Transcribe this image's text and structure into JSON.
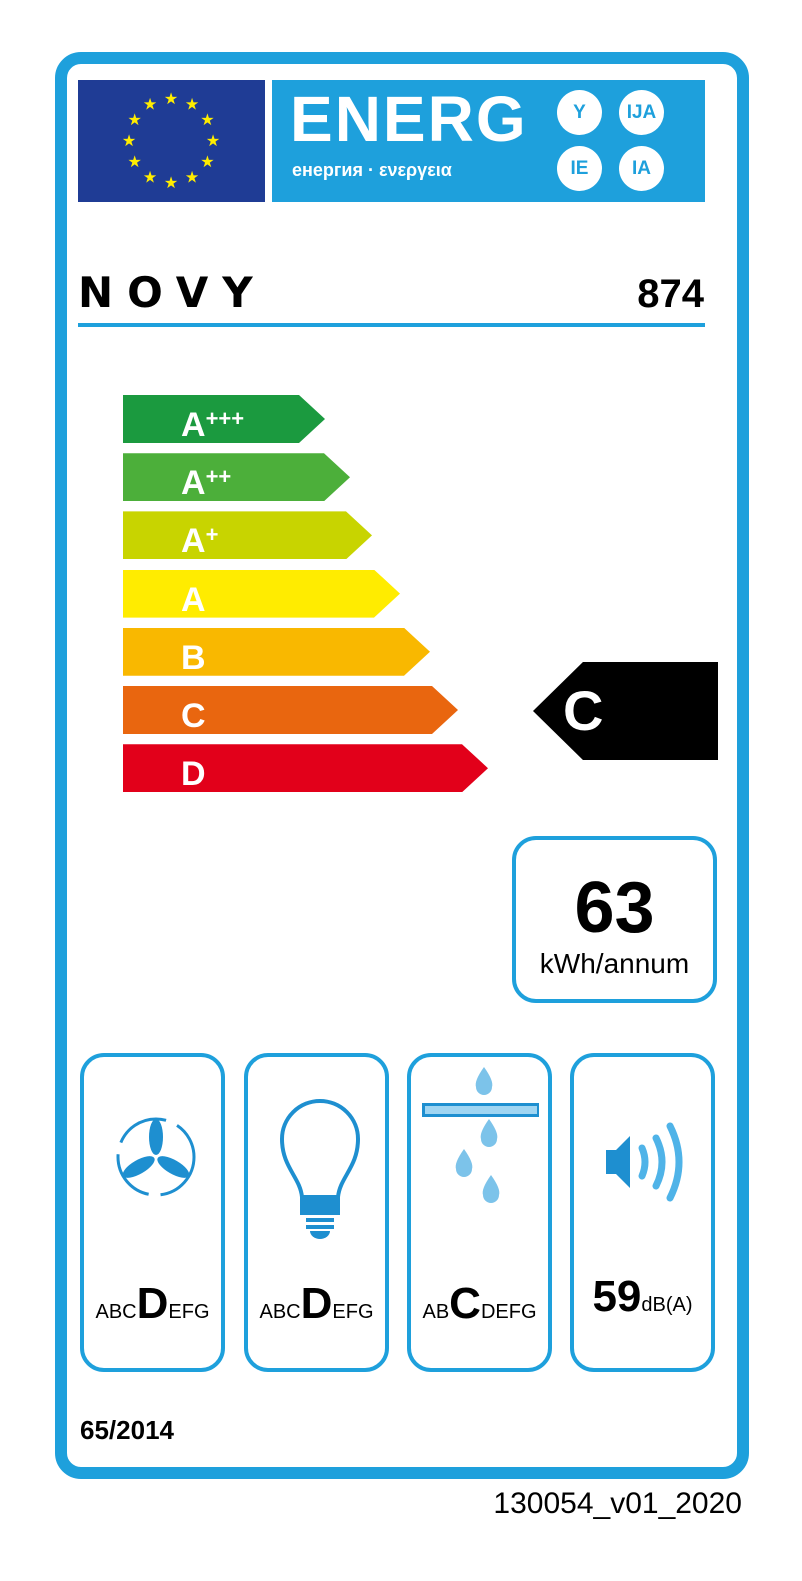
{
  "header": {
    "energy_word": "ENERG",
    "energy_sub": "енергия · ενεργεια",
    "suffixes": [
      "Y",
      "IJA",
      "IE",
      "IA"
    ],
    "flag": "eu-flag"
  },
  "supplier": {
    "brand": "NOVY",
    "model": "874"
  },
  "scale": [
    {
      "label": "A",
      "sup": "+++",
      "color": "#1b9a3f"
    },
    {
      "label": "A",
      "sup": "++",
      "color": "#4caf3a"
    },
    {
      "label": "A",
      "sup": "+",
      "color": "#c8d400"
    },
    {
      "label": "A",
      "sup": "",
      "color": "#ffec00"
    },
    {
      "label": "B",
      "sup": "",
      "color": "#f9b800"
    },
    {
      "label": "C",
      "sup": "",
      "color": "#e9660f"
    },
    {
      "label": "D",
      "sup": "",
      "color": "#e2001a"
    }
  ],
  "rating": "C",
  "energy": {
    "value": "63",
    "unit": "kWh/annum"
  },
  "indicators": [
    {
      "icon": "fan-icon",
      "pre": "ABC",
      "class": "D",
      "post": "EFG"
    },
    {
      "icon": "light-bulb-icon",
      "pre": "ABC",
      "class": "D",
      "post": "EFG"
    },
    {
      "icon": "grease-filter-icon",
      "pre": "AB",
      "class": "C",
      "post": "DEFG"
    },
    {
      "icon": "speaker-icon",
      "value": "59",
      "unit": "dB(A)"
    }
  ],
  "regulation": "65/2014",
  "label_code": "130054_v01_2020",
  "colors": {
    "frame": "#1ea0dc",
    "flag": "#1f3c95",
    "stars": "#ffed00"
  }
}
